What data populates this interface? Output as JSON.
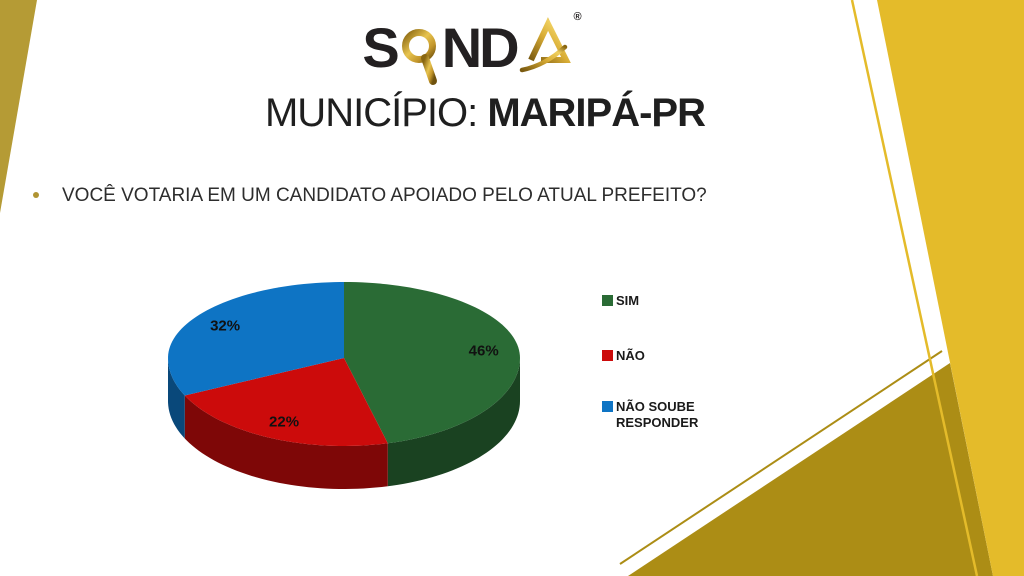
{
  "logo": {
    "name": "SONDA",
    "part_s": "S",
    "part_nd": "ND",
    "registered": "®"
  },
  "title": {
    "prefix": "MUNICÍPIO: ",
    "municipality": "MARIPÁ-PR"
  },
  "question": {
    "text": "VOCÊ VOTARIA EM UM CANDIDATO APOIADO PELO ATUAL PREFEITO?"
  },
  "chart_data": {
    "type": "pie",
    "style": "3d",
    "categories": [
      "SIM",
      "NÃO",
      "NÃO SOUBE RESPONDER"
    ],
    "values": [
      46,
      22,
      32
    ],
    "data_labels": [
      "46%",
      "22%",
      "32%"
    ],
    "colors": [
      "#2A6B35",
      "#CC0B0B",
      "#0E74C4"
    ],
    "start_angle_deg": 0,
    "direction": "clockwise",
    "legend_position": "right",
    "legend": [
      {
        "label": "SIM",
        "color": "#2A6B35"
      },
      {
        "label": "NÃO",
        "color": "#CC0B0B"
      },
      {
        "label": "NÃO SOUBE RESPONDER",
        "color": "#0E74C4"
      }
    ]
  },
  "decor": {
    "gold_bright": "#E4BB2A",
    "gold_medium": "#B59B35",
    "gold_dark": "#AC8D15"
  }
}
